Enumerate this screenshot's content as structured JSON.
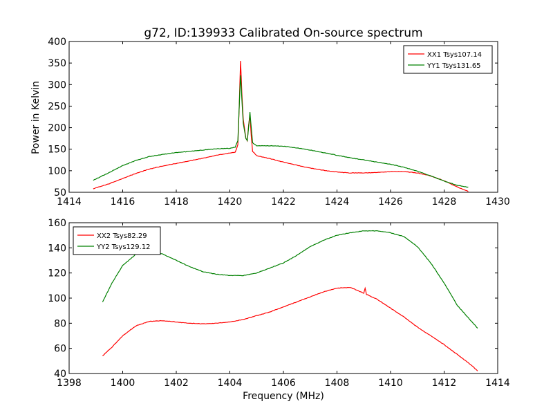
{
  "chart_data": [
    {
      "type": "line",
      "title": "g72, ID:139933 Calibrated On-source spectrum",
      "xlabel": "",
      "ylabel": "Power in Kelvin",
      "xlim": [
        1414,
        1430
      ],
      "ylim": [
        50,
        400
      ],
      "xticks": [
        1414,
        1416,
        1418,
        1420,
        1422,
        1424,
        1426,
        1428,
        1430
      ],
      "yticks": [
        50,
        100,
        150,
        200,
        250,
        300,
        350,
        400
      ],
      "legend_position": "top-right",
      "series": [
        {
          "name": "XX1 Tsys107.14",
          "color": "#ff0000",
          "x": [
            1414.9,
            1415.5,
            1416.0,
            1416.5,
            1417.0,
            1417.5,
            1418.0,
            1418.5,
            1419.0,
            1419.5,
            1420.0,
            1420.2,
            1420.3,
            1420.35,
            1420.4,
            1420.45,
            1420.5,
            1420.6,
            1420.65,
            1420.7,
            1420.75,
            1420.8,
            1420.85,
            1421.0,
            1421.5,
            1422.0,
            1422.5,
            1423.0,
            1423.5,
            1424.0,
            1424.5,
            1425.0,
            1425.5,
            1426.0,
            1426.5,
            1427.0,
            1427.5,
            1428.0,
            1428.5,
            1428.9
          ],
          "y": [
            58,
            70,
            82,
            94,
            104,
            111,
            117,
            123,
            129,
            136,
            141,
            143,
            160,
            250,
            355,
            280,
            220,
            175,
            170,
            205,
            230,
            180,
            145,
            135,
            128,
            120,
            113,
            106,
            101,
            97,
            95,
            95,
            96,
            98,
            98,
            95,
            88,
            77,
            62,
            52
          ]
        },
        {
          "name": "YY1 Tsys131.65",
          "color": "#008000",
          "x": [
            1414.9,
            1415.5,
            1416.0,
            1416.5,
            1417.0,
            1417.5,
            1418.0,
            1418.5,
            1419.0,
            1419.5,
            1420.0,
            1420.2,
            1420.3,
            1420.35,
            1420.4,
            1420.45,
            1420.5,
            1420.6,
            1420.65,
            1420.7,
            1420.75,
            1420.8,
            1420.85,
            1421.0,
            1421.5,
            1422.0,
            1422.5,
            1423.0,
            1423.5,
            1424.0,
            1424.5,
            1425.0,
            1425.5,
            1426.0,
            1426.5,
            1427.0,
            1427.5,
            1428.0,
            1428.5,
            1428.9
          ],
          "y": [
            78,
            96,
            112,
            124,
            133,
            138,
            142,
            145,
            148,
            151,
            152,
            155,
            170,
            250,
            322,
            265,
            210,
            175,
            170,
            200,
            236,
            200,
            165,
            158,
            158,
            157,
            153,
            148,
            142,
            136,
            130,
            125,
            120,
            115,
            108,
            99,
            88,
            76,
            66,
            62
          ]
        }
      ]
    },
    {
      "type": "line",
      "title": "",
      "xlabel": "Frequency (MHz)",
      "ylabel": "",
      "xlim": [
        1398,
        1414
      ],
      "ylim": [
        40,
        160
      ],
      "xticks": [
        1398,
        1400,
        1402,
        1404,
        1406,
        1408,
        1410,
        1412,
        1414
      ],
      "yticks": [
        40,
        60,
        80,
        100,
        120,
        140,
        160
      ],
      "legend_position": "top-left",
      "series": [
        {
          "name": "XX2 Tsys82.29",
          "color": "#ff0000",
          "x": [
            1399.25,
            1399.6,
            1400.0,
            1400.5,
            1401.0,
            1401.5,
            1402.0,
            1402.5,
            1403.0,
            1403.5,
            1404.0,
            1404.5,
            1405.0,
            1405.5,
            1406.0,
            1406.5,
            1407.0,
            1407.5,
            1408.0,
            1408.5,
            1409.0,
            1409.05,
            1409.1,
            1409.5,
            1410.0,
            1410.5,
            1411.0,
            1411.5,
            1412.0,
            1412.5,
            1413.0,
            1413.25
          ],
          "y": [
            54,
            61,
            70,
            78,
            81.5,
            82,
            81,
            80,
            79.5,
            80,
            81,
            83,
            86,
            89,
            93,
            97,
            101,
            105,
            108,
            108.5,
            104,
            108,
            103,
            99,
            92,
            85,
            77,
            70,
            63,
            55,
            47,
            42
          ]
        },
        {
          "name": "YY2 Tsys129.12",
          "color": "#008000",
          "x": [
            1399.25,
            1399.6,
            1400.0,
            1400.5,
            1401.0,
            1401.5,
            1402.0,
            1402.5,
            1403.0,
            1403.5,
            1404.0,
            1404.5,
            1405.0,
            1405.5,
            1406.0,
            1406.5,
            1407.0,
            1407.5,
            1408.0,
            1408.5,
            1409.0,
            1409.5,
            1410.0,
            1410.5,
            1411.0,
            1411.5,
            1412.0,
            1412.5,
            1413.0,
            1413.25
          ],
          "y": [
            97,
            112,
            126,
            135,
            138,
            135,
            130,
            125,
            121,
            119,
            118,
            118,
            120,
            124,
            128,
            134,
            141,
            146,
            150,
            152,
            153.5,
            153.5,
            152,
            149,
            141,
            128,
            112,
            94,
            82,
            76
          ]
        }
      ]
    }
  ]
}
